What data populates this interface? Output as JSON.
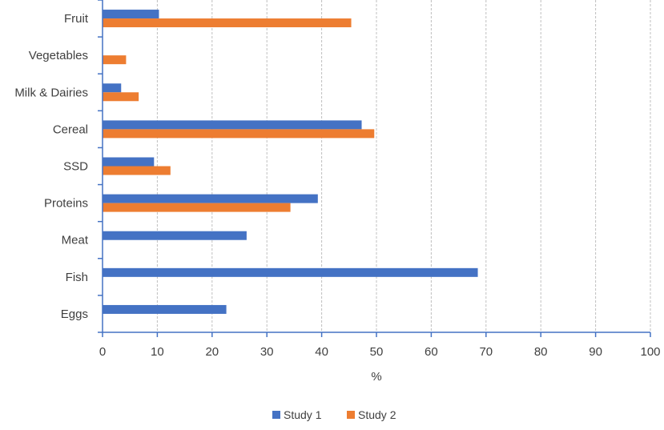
{
  "chart_data": {
    "type": "bar",
    "orientation": "horizontal",
    "categories": [
      "Fruit",
      "Vegetables",
      "Milk & Dairies",
      "Cereal",
      "SSD",
      "Proteins",
      "Meat",
      "Fish",
      "Eggs"
    ],
    "series": [
      {
        "name": "Study 1",
        "color": "#4472C4",
        "values": [
          10.3,
          null,
          3.4,
          47.3,
          9.4,
          39.3,
          26.3,
          68.5,
          22.6
        ]
      },
      {
        "name": "Study 2",
        "color": "#ED7D31",
        "values": [
          45.4,
          4.3,
          6.6,
          49.6,
          12.4,
          34.3,
          null,
          null,
          null
        ]
      }
    ],
    "xlabel": "%",
    "ylabel": "",
    "title": "",
    "xlim": [
      0,
      100
    ],
    "xticks": [
      0,
      10,
      20,
      30,
      40,
      50,
      60,
      70,
      80,
      90,
      100
    ],
    "grid": "vertical dashed",
    "legend_position": "bottom"
  }
}
